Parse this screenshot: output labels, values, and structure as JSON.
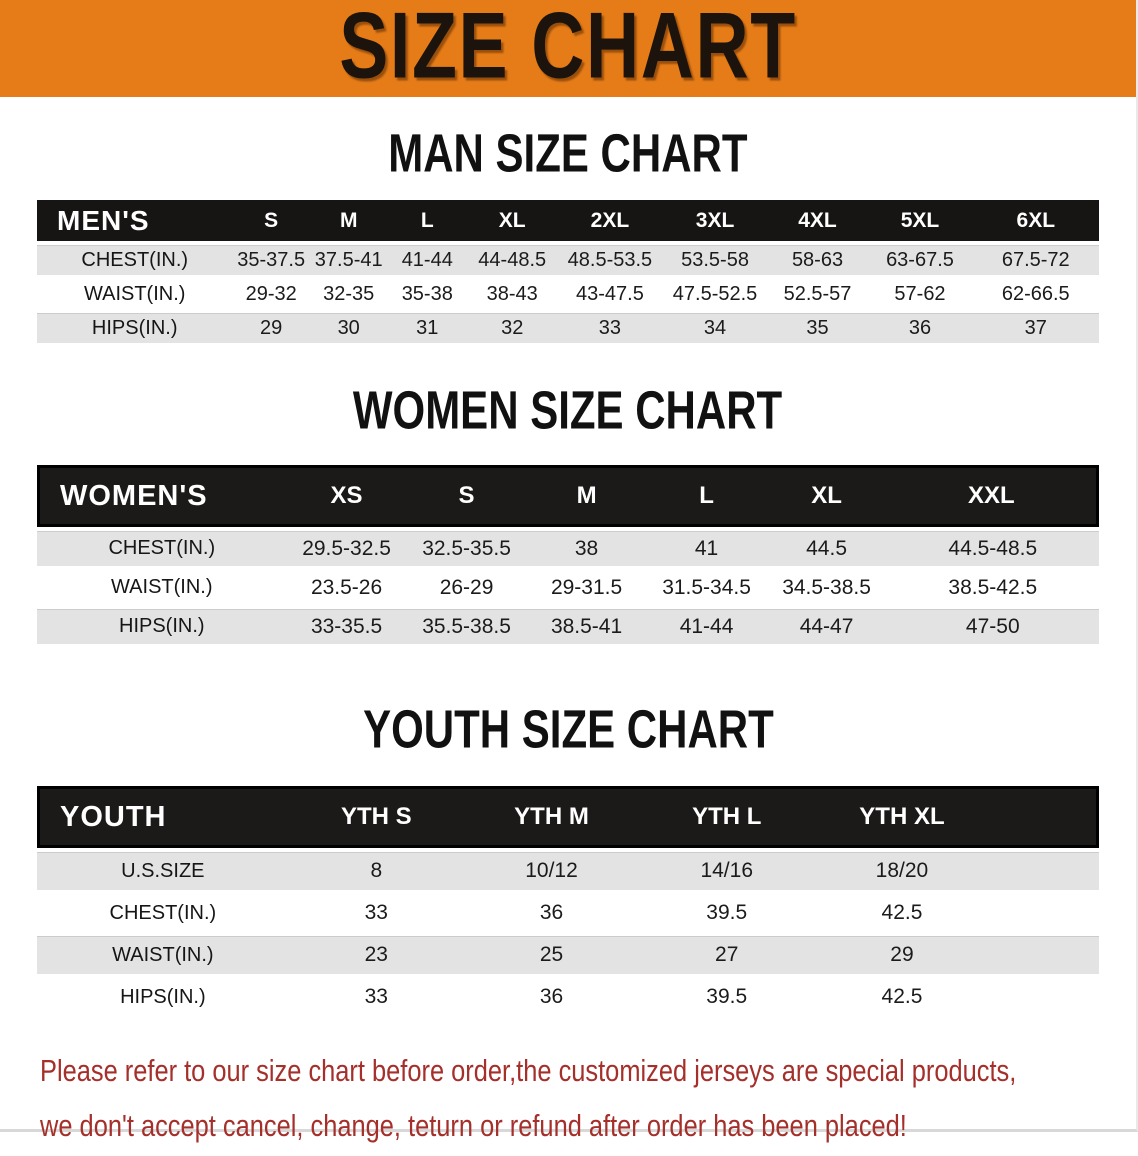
{
  "banner": {
    "title": "SIZE CHART"
  },
  "sections": [
    {
      "heading": "MAN SIZE CHART",
      "table": {
        "header_label": "MEN'S",
        "size_headers": [
          "S",
          "M",
          "L",
          "XL",
          "2XL",
          "3XL",
          "4XL",
          "5XL",
          "6XL"
        ],
        "rows": [
          {
            "label": "CHEST(IN.)",
            "values": [
              "35-37.5",
              "37.5-41",
              "41-44",
              "44-48.5",
              "48.5-53.5",
              "53.5-58",
              "58-63",
              "63-67.5",
              "67.5-72"
            ]
          },
          {
            "label": "WAIST(IN.)",
            "values": [
              "29-32",
              "32-35",
              "35-38",
              "38-43",
              "43-47.5",
              "47.5-52.5",
              "52.5-57",
              "57-62",
              "62-66.5"
            ]
          },
          {
            "label": "HIPS(IN.)",
            "values": [
              "29",
              "30",
              "31",
              "32",
              "33",
              "34",
              "35",
              "36",
              "37"
            ]
          }
        ]
      }
    },
    {
      "heading": "WOMEN SIZE CHART",
      "table": {
        "header_label": "WOMEN'S",
        "size_headers": [
          "XS",
          "S",
          "M",
          "L",
          "XL",
          "XXL"
        ],
        "rows": [
          {
            "label": "CHEST(IN.)",
            "values": [
              "29.5-32.5",
              "32.5-35.5",
              "38",
              "41",
              "44.5",
              "44.5-48.5"
            ]
          },
          {
            "label": "WAIST(IN.)",
            "values": [
              "23.5-26",
              "26-29",
              "29-31.5",
              "31.5-34.5",
              "34.5-38.5",
              "38.5-42.5"
            ]
          },
          {
            "label": "HIPS(IN.)",
            "values": [
              "33-35.5",
              "35.5-38.5",
              "38.5-41",
              "41-44",
              "44-47",
              "47-50"
            ]
          }
        ]
      }
    },
    {
      "heading": "YOUTH SIZE CHART",
      "table": {
        "header_label": "YOUTH",
        "size_headers": [
          "YTH S",
          "YTH M",
          "YTH L",
          "YTH XL"
        ],
        "rows": [
          {
            "label": "U.S.SIZE",
            "values": [
              "8",
              "10/12",
              "14/16",
              "18/20"
            ]
          },
          {
            "label": "CHEST(IN.)",
            "values": [
              "33",
              "36",
              "39.5",
              "42.5"
            ]
          },
          {
            "label": "WAIST(IN.)",
            "values": [
              "23",
              "25",
              "27",
              "29"
            ]
          },
          {
            "label": "HIPS(IN.)",
            "values": [
              "33",
              "36",
              "39.5",
              "42.5"
            ]
          }
        ]
      }
    }
  ],
  "footnote": {
    "line1": "Please refer to our size chart before order,the customized jerseys are special products,",
    "line2": "we don't accept cancel, change, teturn or refund after order has been placed!"
  },
  "colors": {
    "banner_orange": "#E67C17",
    "banner_text": "#1C140C",
    "header_black": "#171514",
    "row_gray": "#E4E3E3",
    "note_red": "#A5302B"
  }
}
